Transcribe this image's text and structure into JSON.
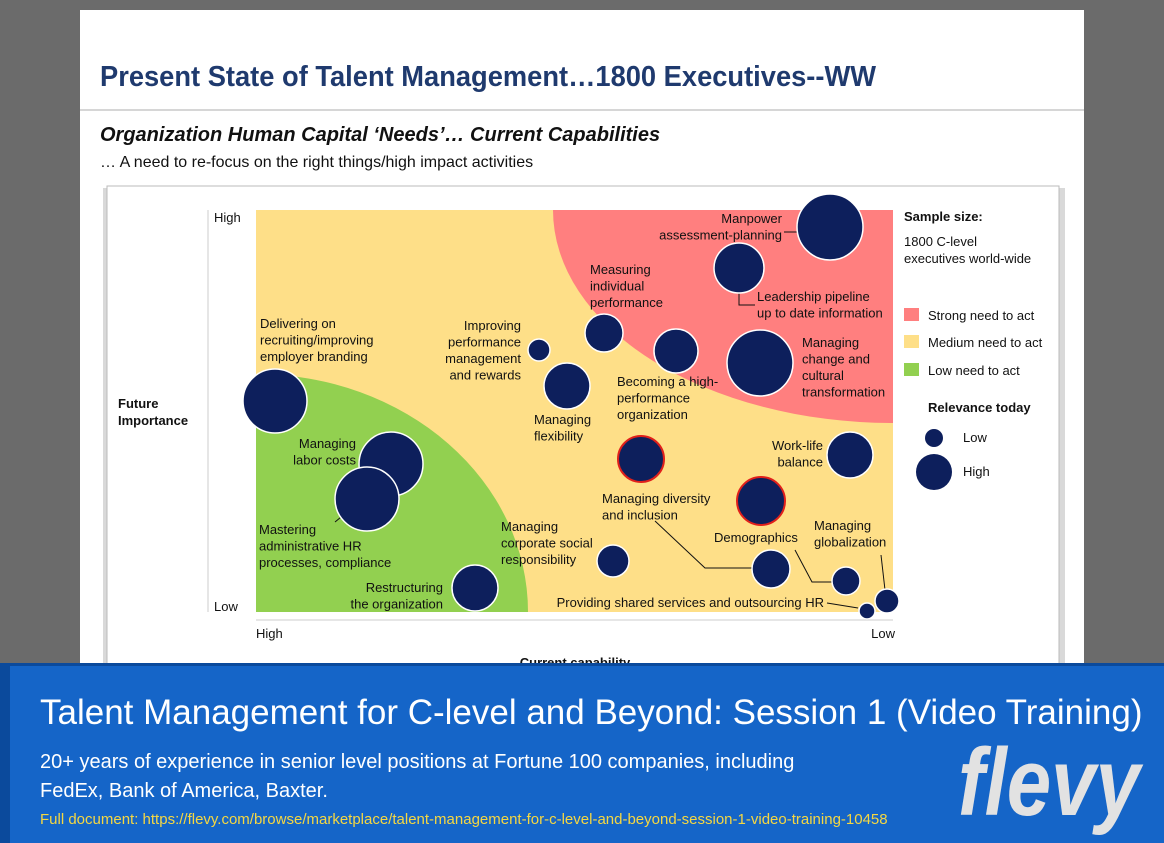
{
  "header": {
    "title": "Present State of Talent Management…1800 Executives--WW"
  },
  "subtitle": "Organization Human Capital ‘Needs’… Current Capabilities",
  "description": "… A need to re-focus on the right things/high impact activities",
  "chart": {
    "y_axis_label": [
      "Future",
      "Importance"
    ],
    "y_high": "High",
    "y_low": "Low",
    "x_high": "High",
    "x_low": "Low",
    "x_axis_label": "Current capability",
    "labels": [
      [
        "Manpower",
        "assessment-planning"
      ],
      [
        "Leadership pipeline",
        "up to date information"
      ],
      [
        "Measuring",
        "individual",
        "performance"
      ],
      [
        "Managing",
        "change and",
        "cultural",
        "transformation"
      ],
      [
        "Becoming a high-",
        "performance",
        "organization"
      ],
      [
        "Improving",
        "performance",
        "management",
        "and rewards"
      ],
      [
        "Managing",
        "flexibility"
      ],
      [
        "Delivering on",
        "recruiting/improving",
        "employer branding"
      ],
      [
        "Managing",
        "labor costs"
      ],
      [
        "Mastering",
        "administrative HR",
        "processes, compliance"
      ],
      [
        "Restructuring",
        "the organization"
      ],
      [
        "Managing",
        "corporate social",
        "responsibility"
      ],
      [
        "Work-life",
        "balance"
      ],
      [
        "Managing diversity",
        "and inclusion"
      ],
      [
        "Demographics"
      ],
      [
        "Managing",
        "globalization"
      ],
      [
        "Providing shared services and outsourcing HR"
      ]
    ],
    "legend": {
      "sample_title": "Sample size:",
      "sample_text": [
        "1800 C-level",
        "executives world-wide"
      ],
      "zones": [
        "Strong need to act",
        "Medium need to act",
        "Low need to act"
      ],
      "relevance_title": "Relevance today",
      "relevance": [
        "Low",
        "High"
      ]
    }
  },
  "banner": {
    "title": "Talent Management for C-level and Beyond: Session 1 (Video Training)",
    "description": [
      "20+ years of experience in senior level positions at Fortune 100 companies, including",
      "FedEx, Bank of America, Baxter."
    ],
    "link": "Full document: https://flevy.com/browse/marketplace/talent-management-for-c-level-and-beyond-session-1-video-training-10458",
    "logo": "flevy"
  }
}
